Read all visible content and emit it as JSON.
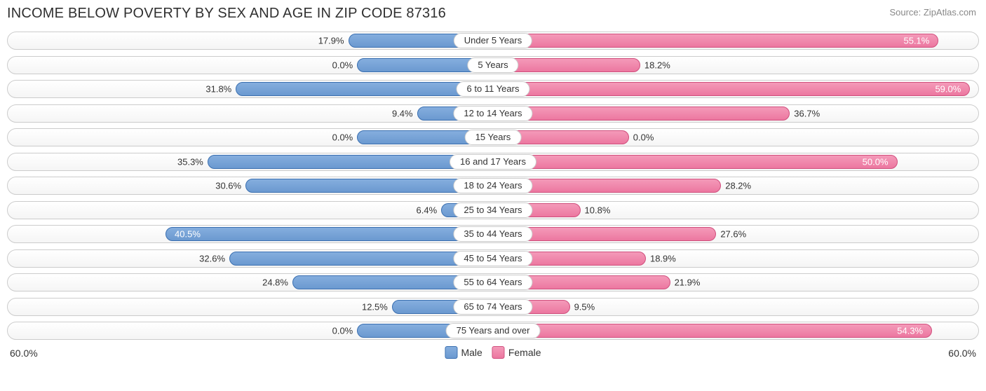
{
  "header": {
    "title": "INCOME BELOW POVERTY BY SEX AND AGE IN ZIP CODE 87316",
    "source": "Source: ZipAtlas.com"
  },
  "chart": {
    "type": "diverging-bar-horizontal",
    "axis_max": 60.0,
    "axis_label_left": "60.0%",
    "axis_label_right": "60.0%",
    "track_border_color": "#cccccc",
    "track_bg_top": "#ffffff",
    "track_bg_bottom": "#f5f5f5",
    "male": {
      "fill_top": "#85aede",
      "fill_bottom": "#6b99d0",
      "border": "#3a6fb0",
      "label": "Male"
    },
    "female": {
      "fill_top": "#f49ab9",
      "fill_bottom": "#ec77a0",
      "border": "#d04f7d",
      "label": "Female"
    },
    "zero_bar_stub_pct": 14.0,
    "label_fontsize": 13,
    "value_fontsize": 13,
    "title_fontsize": 20,
    "title_color": "#303030",
    "source_color": "#888888",
    "background_color": "#ffffff",
    "categories": [
      {
        "label": "Under 5 Years",
        "male": 17.9,
        "female": 55.1,
        "male_txt": "17.9%",
        "female_txt": "55.1%"
      },
      {
        "label": "5 Years",
        "male": 0.0,
        "female": 18.2,
        "male_txt": "0.0%",
        "female_txt": "18.2%"
      },
      {
        "label": "6 to 11 Years",
        "male": 31.8,
        "female": 59.0,
        "male_txt": "31.8%",
        "female_txt": "59.0%"
      },
      {
        "label": "12 to 14 Years",
        "male": 9.4,
        "female": 36.7,
        "male_txt": "9.4%",
        "female_txt": "36.7%"
      },
      {
        "label": "15 Years",
        "male": 0.0,
        "female": 0.0,
        "male_txt": "0.0%",
        "female_txt": "0.0%"
      },
      {
        "label": "16 and 17 Years",
        "male": 35.3,
        "female": 50.0,
        "male_txt": "35.3%",
        "female_txt": "50.0%"
      },
      {
        "label": "18 to 24 Years",
        "male": 30.6,
        "female": 28.2,
        "male_txt": "30.6%",
        "female_txt": "28.2%"
      },
      {
        "label": "25 to 34 Years",
        "male": 6.4,
        "female": 10.8,
        "male_txt": "6.4%",
        "female_txt": "10.8%"
      },
      {
        "label": "35 to 44 Years",
        "male": 40.5,
        "female": 27.6,
        "male_txt": "40.5%",
        "female_txt": "27.6%"
      },
      {
        "label": "45 to 54 Years",
        "male": 32.6,
        "female": 18.9,
        "male_txt": "32.6%",
        "female_txt": "18.9%"
      },
      {
        "label": "55 to 64 Years",
        "male": 24.8,
        "female": 21.9,
        "male_txt": "24.8%",
        "female_txt": "21.9%"
      },
      {
        "label": "65 to 74 Years",
        "male": 12.5,
        "female": 9.5,
        "male_txt": "12.5%",
        "female_txt": "9.5%"
      },
      {
        "label": "75 Years and over",
        "male": 0.0,
        "female": 54.3,
        "male_txt": "0.0%",
        "female_txt": "54.3%"
      }
    ]
  }
}
